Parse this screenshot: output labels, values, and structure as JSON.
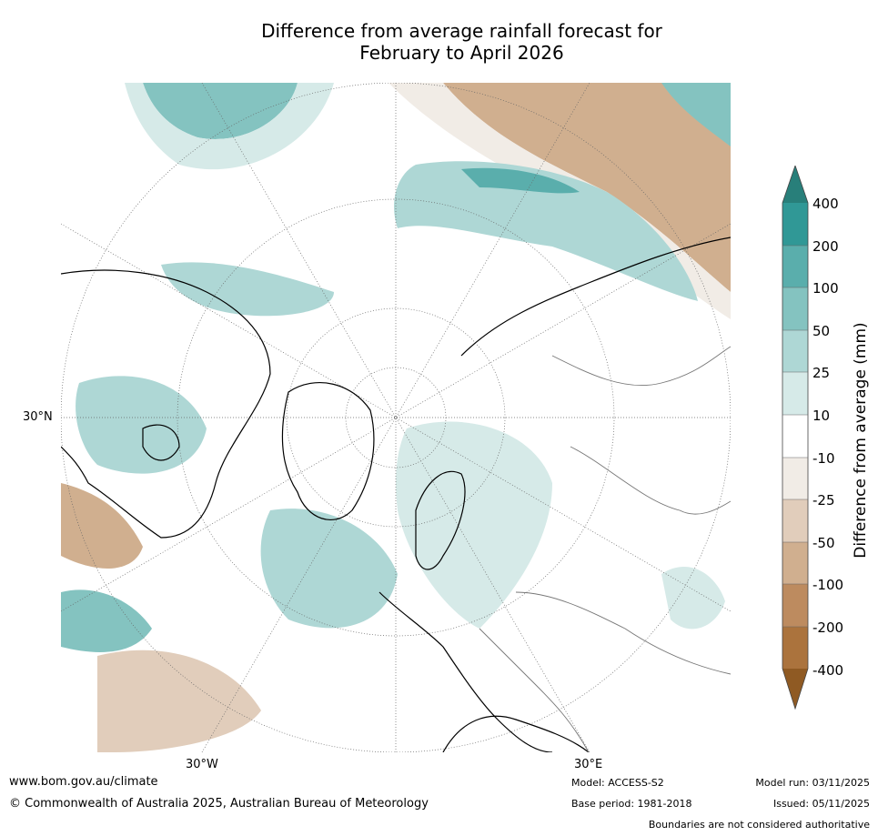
{
  "title_line1": "Difference from average rainfall forecast for",
  "title_line2": "February to April 2026",
  "map": {
    "projection": "north-polar-stereographic",
    "labels": {
      "lat_30n": "30°N",
      "lon_30w": "30°W",
      "lon_30e": "30°E"
    }
  },
  "colorbar": {
    "title": "Difference from average (mm)",
    "ticks": [
      "400",
      "200",
      "100",
      "50",
      "25",
      "10",
      "-10",
      "-25",
      "-50",
      "-100",
      "-200",
      "-400"
    ],
    "colors": {
      "above_400": "#287f7a",
      "200_400": "#309896",
      "100_200": "#5aaeac",
      "50_100": "#84c3c0",
      "25_50": "#aed7d5",
      "10_25": "#d6eae8",
      "neutral": "#ffffff",
      "m10_m25": "#f1ece6",
      "m25_m50": "#e1cdbb",
      "m50_m100": "#d0af8f",
      "m100_m200": "#bd8b5f",
      "m200_m400": "#ab733d",
      "below_m400": "#8f5a23"
    }
  },
  "footer": {
    "website": "www.bom.gov.au/climate",
    "copyright": "© Commonwealth of Australia 2025, Australian Bureau of Meteorology",
    "model": "Model: ACCESS-S2",
    "base_period": "Base period: 1981-2018",
    "model_run": "Model run: 03/11/2025",
    "issued": "Issued: 05/11/2025",
    "disclaimer": "Boundaries are not considered authoritative"
  }
}
